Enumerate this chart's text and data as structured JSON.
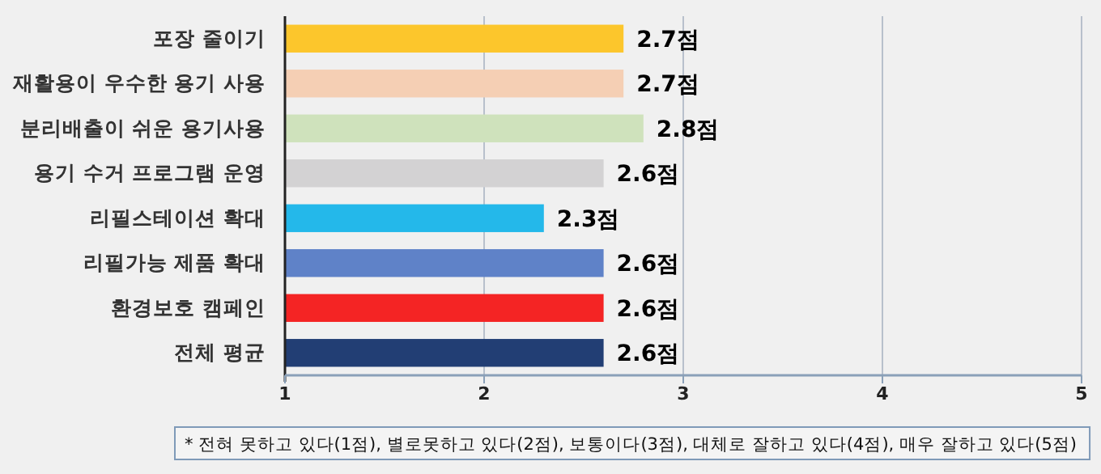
{
  "chart_data": {
    "type": "bar",
    "orientation": "horizontal",
    "categories": [
      "포장 줄이기",
      "재활용이 우수한 용기 사용",
      "분리배출이 쉬운 용기사용",
      "용기 수거 프로그램 운영",
      "리필스테이션 확대",
      "리필가능 제품 확대",
      "환경보호 캠페인",
      "전체 평균"
    ],
    "values": [
      2.7,
      2.7,
      2.8,
      2.6,
      2.3,
      2.6,
      2.6,
      2.6
    ],
    "colors": [
      "#fcc62c",
      "#f5cfb4",
      "#cfe2bc",
      "#d3d2d3",
      "#24b8ea",
      "#5f82c8",
      "#f42424",
      "#223e74"
    ],
    "value_labels": [
      "2.7점",
      "2.7점",
      "2.8점",
      "2.6점",
      "2.3점",
      "2.6점",
      "2.6점",
      "2.6점"
    ],
    "xlim": [
      1,
      5
    ],
    "xticks": [
      1,
      2,
      3,
      4,
      5
    ],
    "grid": "x",
    "annotations": [
      "* 전혀 못하고 있다(1점), 별로못하고 있다(2점), 보통이다(3점), 대체로 잘하고 있다(4점), 매우 잘하고 있다(5점)"
    ]
  }
}
